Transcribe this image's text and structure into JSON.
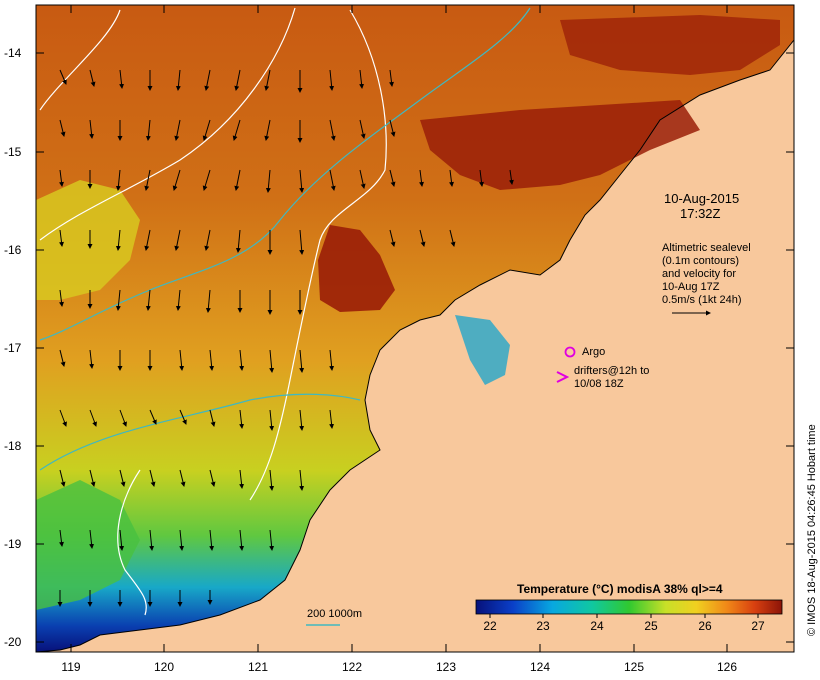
{
  "date": "10-Aug-2015",
  "time": "17:32Z",
  "altimetry": {
    "lines": [
      "Altimetric sealevel",
      "(0.1m contours)",
      "and velocity for",
      "10-Aug 17Z",
      "0.5m/s (1kt 24h)"
    ]
  },
  "legend": {
    "argo_label": "Argo",
    "drifters_line1": "drifters@12h to",
    "drifters_line2": "10/08 18Z",
    "bathy_label": "200  1000m"
  },
  "colorbar": {
    "title": "Temperature (°C) modisA 38% ql>=4",
    "ticks": [
      "22",
      "23",
      "24",
      "25",
      "26",
      "27"
    ]
  },
  "axes": {
    "lat_labels": [
      "-14",
      "-15",
      "-16",
      "-17",
      "-18",
      "-19",
      "-20"
    ],
    "lon_labels": [
      "119",
      "120",
      "121",
      "122",
      "123",
      "124",
      "125",
      "126"
    ]
  },
  "credit": "© IMOS 18-Aug-2015 04:26:45 Hobart time",
  "colors": {
    "land": "#f8c89c",
    "warm": "#9a1e08",
    "cool": "#0a1f8c",
    "argo": "#e000e0",
    "drifter": "#e000e0",
    "bathy": "#40b8c0"
  }
}
